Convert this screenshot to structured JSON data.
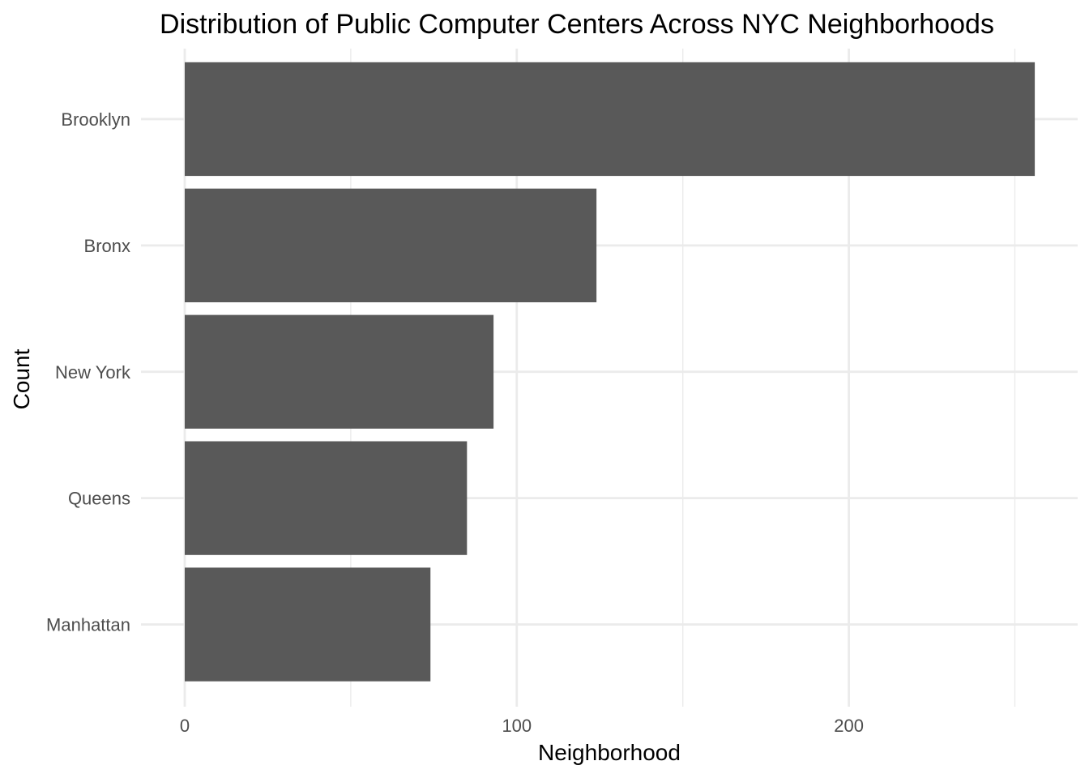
{
  "chart_data": {
    "type": "bar",
    "orientation": "horizontal",
    "title": "Distribution of Public Computer Centers Across NYC Neighborhoods",
    "xlabel": "Neighborhood",
    "ylabel": "Count",
    "categories": [
      "Brooklyn",
      "Bronx",
      "New York",
      "Queens",
      "Manhattan"
    ],
    "values": [
      256,
      124,
      93,
      85,
      74
    ],
    "x_ticks": [
      0,
      100,
      200
    ],
    "xlim": [
      0,
      268
    ],
    "grid": true,
    "legend": "none",
    "bar_color": "#595959",
    "grid_color": "#ebebeb",
    "background_color": "#ffffff"
  }
}
